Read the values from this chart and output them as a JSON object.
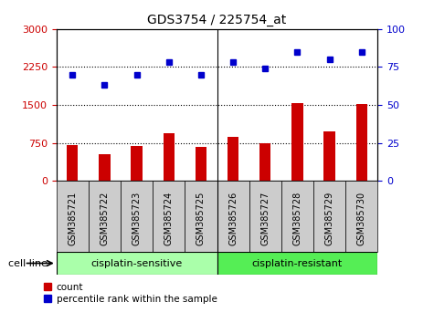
{
  "title": "GDS3754 / 225754_at",
  "samples": [
    "GSM385721",
    "GSM385722",
    "GSM385723",
    "GSM385724",
    "GSM385725",
    "GSM385726",
    "GSM385727",
    "GSM385728",
    "GSM385729",
    "GSM385730"
  ],
  "counts": [
    700,
    530,
    690,
    950,
    665,
    870,
    750,
    1530,
    970,
    1510
  ],
  "percentiles": [
    70,
    63,
    70,
    78,
    70,
    78,
    74,
    85,
    80,
    85
  ],
  "bar_color": "#cc0000",
  "dot_color": "#0000cc",
  "left_yticks": [
    0,
    750,
    1500,
    2250,
    3000
  ],
  "right_yticks": [
    0,
    25,
    50,
    75,
    100
  ],
  "left_ylim": [
    0,
    3000
  ],
  "right_ylim": [
    0,
    100
  ],
  "left_ylabel_color": "#cc0000",
  "right_ylabel_color": "#0000cc",
  "group1_label": "cisplatin-sensitive",
  "group2_label": "cisplatin-resistant",
  "group1_color": "#aaffaa",
  "group2_color": "#55ee55",
  "cell_line_label": "cell line",
  "legend_count_label": "count",
  "legend_pct_label": "percentile rank within the sample",
  "tick_bg_color": "#cccccc",
  "n_sensitive": 5,
  "n_resistant": 5
}
